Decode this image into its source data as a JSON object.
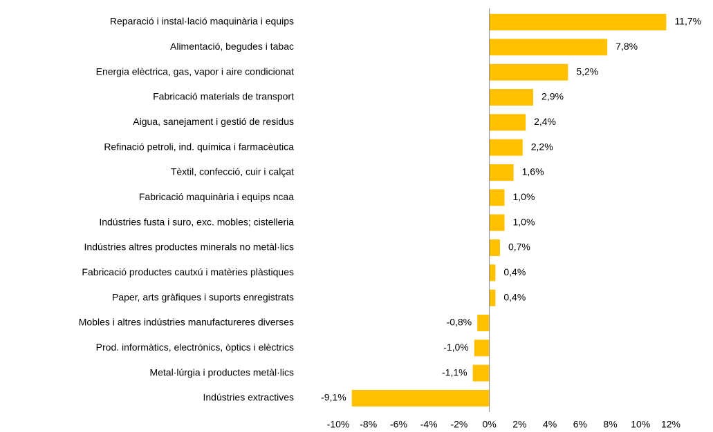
{
  "chart_data": {
    "type": "barh",
    "categories": [
      "Reparació i instal·lació maquinària i equips",
      "Alimentació, begudes i tabac",
      "Energia elèctrica, gas, vapor i aire condicionat",
      "Fabricació materials de transport",
      "Aigua, sanejament i gestió de residus",
      "Refinació petroli, ind. química i farmacèutica",
      "Tèxtil, confecció, cuir i calçat",
      "Fabricació maquinària i equips ncaa",
      "Indústries fusta i suro, exc. mobles; cistelleria",
      "Indústries altres productes minerals no metàl·lics",
      "Fabricació productes cautxú i matèries plàstiques",
      "Paper, arts gràfiques i suports enregistrats",
      "Mobles i altres indústries manufactureres diverses",
      "Prod. informàtics, electrònics, òptics i elèctrics",
      "Metal·lúrgia i productes metàl·lics",
      "Indústries extractives"
    ],
    "values": [
      11.7,
      7.8,
      5.2,
      2.9,
      2.4,
      2.2,
      1.6,
      1.0,
      1.0,
      0.7,
      0.4,
      0.4,
      -0.8,
      -1.0,
      -1.1,
      -9.1
    ],
    "value_labels": [
      "11,7%",
      "7,8%",
      "5,2%",
      "2,9%",
      "2,4%",
      "2,2%",
      "1,6%",
      "1,0%",
      "1,0%",
      "0,7%",
      "0,4%",
      "0,4%",
      "-0,8%",
      "-1,0%",
      "-1,1%",
      "-9,1%"
    ],
    "color": "#ffc000",
    "xlim": [
      -10,
      12
    ],
    "xticks": [
      {
        "value": -10,
        "label": "-10%"
      },
      {
        "value": -8,
        "label": "-8%"
      },
      {
        "value": -6,
        "label": "-6%"
      },
      {
        "value": -4,
        "label": "-4%"
      },
      {
        "value": -2,
        "label": "-2%"
      },
      {
        "value": 0,
        "label": "0%"
      },
      {
        "value": 2,
        "label": "2%"
      },
      {
        "value": 4,
        "label": "4%"
      },
      {
        "value": 6,
        "label": "6%"
      },
      {
        "value": 8,
        "label": "8%"
      },
      {
        "value": 10,
        "label": "10%"
      },
      {
        "value": 12,
        "label": "12%"
      }
    ],
    "grid": false
  }
}
